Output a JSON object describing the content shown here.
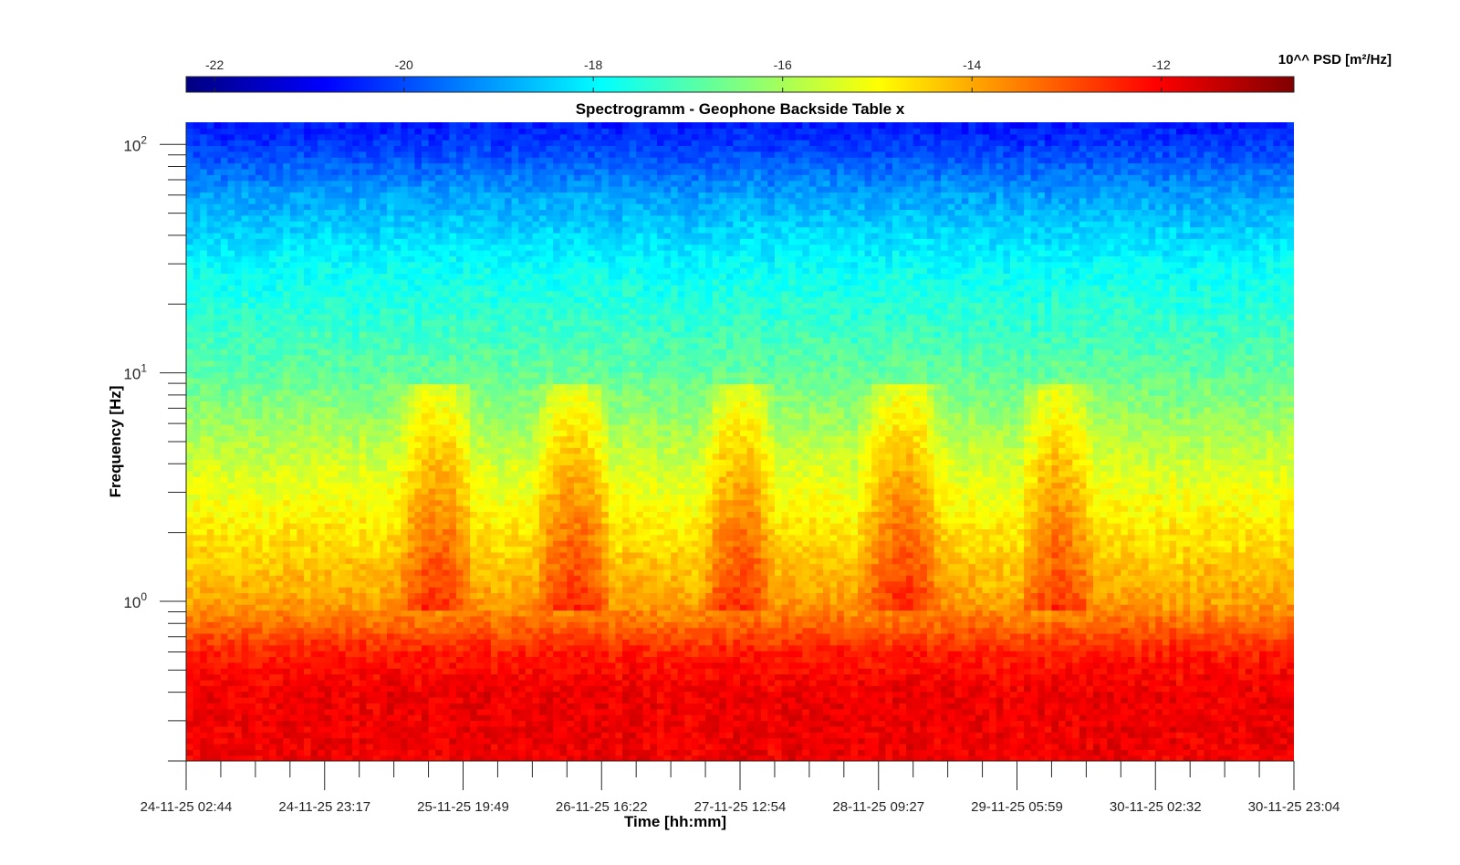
{
  "chart_data": {
    "type": "heatmap",
    "title": "Spectrogramm - Geophone Backside Table x",
    "xlabel": "Time [hh:mm]",
    "ylabel": "Frequency [Hz]",
    "y_scale": "log",
    "ylim": [
      0.2,
      125
    ],
    "y_major_ticks": [
      {
        "value": 1,
        "base": "10",
        "exp": "0"
      },
      {
        "value": 10,
        "base": "10",
        "exp": "1"
      },
      {
        "value": 100,
        "base": "10",
        "exp": "2"
      }
    ],
    "x_tick_labels": [
      "24-11-25 02:44",
      "24-11-25 23:17",
      "25-11-25 19:49",
      "26-11-25 16:22",
      "27-11-25 12:54",
      "28-11-25 09:27",
      "29-11-25 05:59",
      "30-11-25 02:32",
      "30-11-25 23:04"
    ],
    "colorbar": {
      "label": "10^^ PSD [m²/Hz]",
      "min": -22.3,
      "max": -10.6,
      "ticks": [
        -22,
        -20,
        -18,
        -16,
        -14,
        -12
      ],
      "colormap": "jet"
    },
    "grid": false,
    "z_profile_log10_psd": [
      {
        "freq_hz": 0.2,
        "value": -11.9
      },
      {
        "freq_hz": 0.4,
        "value": -11.9
      },
      {
        "freq_hz": 0.6,
        "value": -12.4
      },
      {
        "freq_hz": 0.8,
        "value": -13.3
      },
      {
        "freq_hz": 1,
        "value": -13.9
      },
      {
        "freq_hz": 2,
        "value": -14.7
      },
      {
        "freq_hz": 4,
        "value": -15.5
      },
      {
        "freq_hz": 10,
        "value": -16.8
      },
      {
        "freq_hz": 30,
        "value": -17.9
      },
      {
        "freq_hz": 60,
        "value": -19.0
      },
      {
        "freq_hz": 100,
        "value": -20.2
      },
      {
        "freq_hz": 125,
        "value": -20.6
      }
    ],
    "activity_bursts": [
      {
        "start_tick": 1.6,
        "end_tick": 2.0,
        "psd_increase": 1.3
      },
      {
        "start_tick": 2.6,
        "end_tick": 3.0,
        "psd_increase": 1.3
      },
      {
        "start_tick": 3.8,
        "end_tick": 4.2,
        "psd_increase": 1.2
      },
      {
        "start_tick": 4.95,
        "end_tick": 5.4,
        "psd_increase": 1.3
      },
      {
        "start_tick": 6.1,
        "end_tick": 6.5,
        "psd_increase": 1.2
      }
    ]
  }
}
